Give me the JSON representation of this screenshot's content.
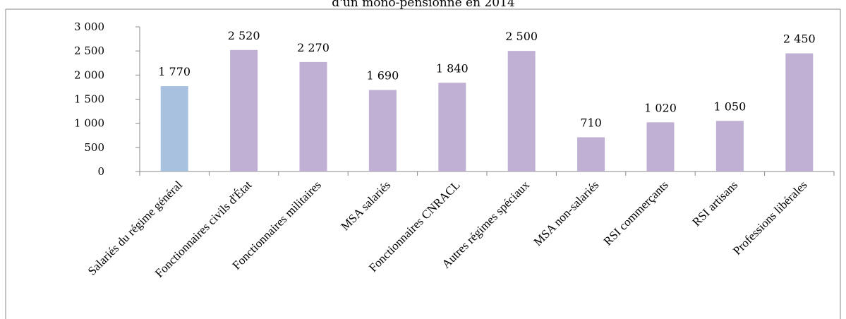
{
  "chart_data": {
    "type": "bar",
    "title": "d'un mono-pensionné en 2014",
    "xlabel": "",
    "ylabel": "",
    "ylim": [
      0,
      3000
    ],
    "yticks": [
      0,
      500,
      1000,
      1500,
      2000,
      2500,
      3000
    ],
    "ytick_labels": [
      "0",
      "500",
      "1 000",
      "1 500",
      "2 000",
      "2 500",
      "3 000"
    ],
    "grid": false,
    "legend": "none",
    "categories": [
      "Salariés du régime général",
      "Fonctionnaires civils d'État",
      "Fonctionnaires militaires",
      "MSA salariés",
      "Fonctionnaires CNRACL",
      "Autres régimes spéciaux",
      "MSA non-salariés",
      "RSI commerçants",
      "RSI artisans",
      "Professions libérales"
    ],
    "values": [
      1770,
      2520,
      2270,
      1690,
      1840,
      2500,
      710,
      1020,
      1050,
      2450
    ],
    "value_labels": [
      "1 770",
      "2 520",
      "2 270",
      "1 690",
      "1 840",
      "2 500",
      "710",
      "1 020",
      "1 050",
      "2 450"
    ],
    "colors": {
      "highlight": "#a7c1de",
      "default": "#c0b0d4",
      "axis": "#888888",
      "border": "#8a8a8a"
    },
    "highlight_index": 0
  }
}
